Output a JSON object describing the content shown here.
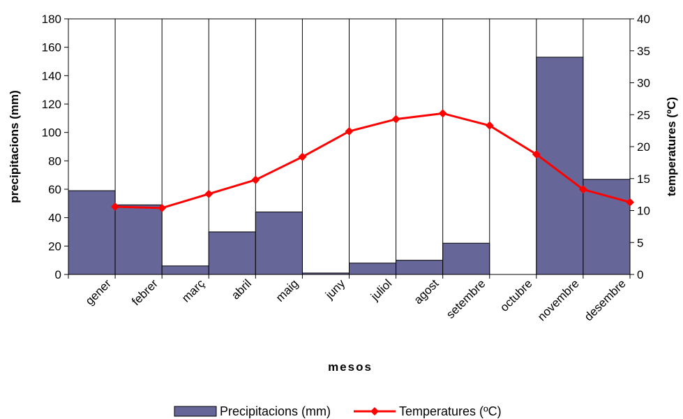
{
  "chart_data": {
    "type": "bar+line",
    "categories": [
      "gener",
      "febrer",
      "març",
      "abril",
      "maig",
      "juny",
      "juliol",
      "agost",
      "setembre",
      "octubre",
      "novembre",
      "desembre"
    ],
    "series": [
      {
        "name": "Precipitacions (mm)",
        "type": "bar",
        "axis": "left",
        "color": "#666699",
        "values": [
          59,
          49,
          6,
          30,
          44,
          1,
          8,
          10,
          22,
          0,
          153,
          67
        ]
      },
      {
        "name": "Temperatures (ºC)",
        "type": "line",
        "axis": "right",
        "color": "#ff0000",
        "values": [
          10.6,
          10.4,
          12.6,
          14.8,
          18.4,
          22.4,
          24.3,
          25.2,
          23.3,
          18.8,
          13.3,
          11.3
        ]
      }
    ],
    "xlabel": "mesos",
    "ylabel_left": "precipitacions (mm)",
    "ylabel_right": "temperatures (ºC)",
    "ylim_left": [
      0,
      180
    ],
    "ylim_right": [
      0,
      40
    ],
    "yticks_left": [
      "0",
      "20",
      "40",
      "60",
      "80",
      "100",
      "120",
      "140",
      "160",
      "180"
    ],
    "yticks_right": [
      "0",
      "5",
      "10",
      "15",
      "20",
      "25",
      "30",
      "35",
      "40"
    ],
    "grid": "vertical",
    "legend_position": "bottom"
  }
}
